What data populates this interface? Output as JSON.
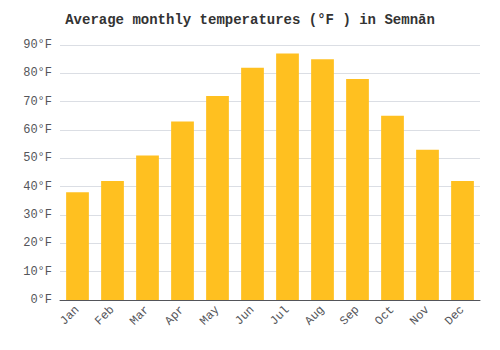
{
  "chart_data": {
    "type": "bar",
    "title": "Average monthly temperatures (°F ) in Semnān",
    "categories": [
      "Jan",
      "Feb",
      "Mar",
      "Apr",
      "May",
      "Jun",
      "Jul",
      "Aug",
      "Sep",
      "Oct",
      "Nov",
      "Dec"
    ],
    "values": [
      38,
      42,
      51,
      63,
      72,
      82,
      87,
      85,
      78,
      65,
      53,
      42
    ],
    "color": "#FFC020",
    "ylim": [
      0,
      90
    ],
    "yticks": [
      {
        "value": 0,
        "label": "0°F"
      },
      {
        "value": 10,
        "label": "10°F"
      },
      {
        "value": 20,
        "label": "20°F"
      },
      {
        "value": 30,
        "label": "30°F"
      },
      {
        "value": 40,
        "label": "40°F"
      },
      {
        "value": 50,
        "label": "50°F"
      },
      {
        "value": 60,
        "label": "60°F"
      },
      {
        "value": 70,
        "label": "70°F"
      },
      {
        "value": 80,
        "label": "80°F"
      },
      {
        "value": 90,
        "label": "90°F"
      }
    ],
    "grid": true
  }
}
